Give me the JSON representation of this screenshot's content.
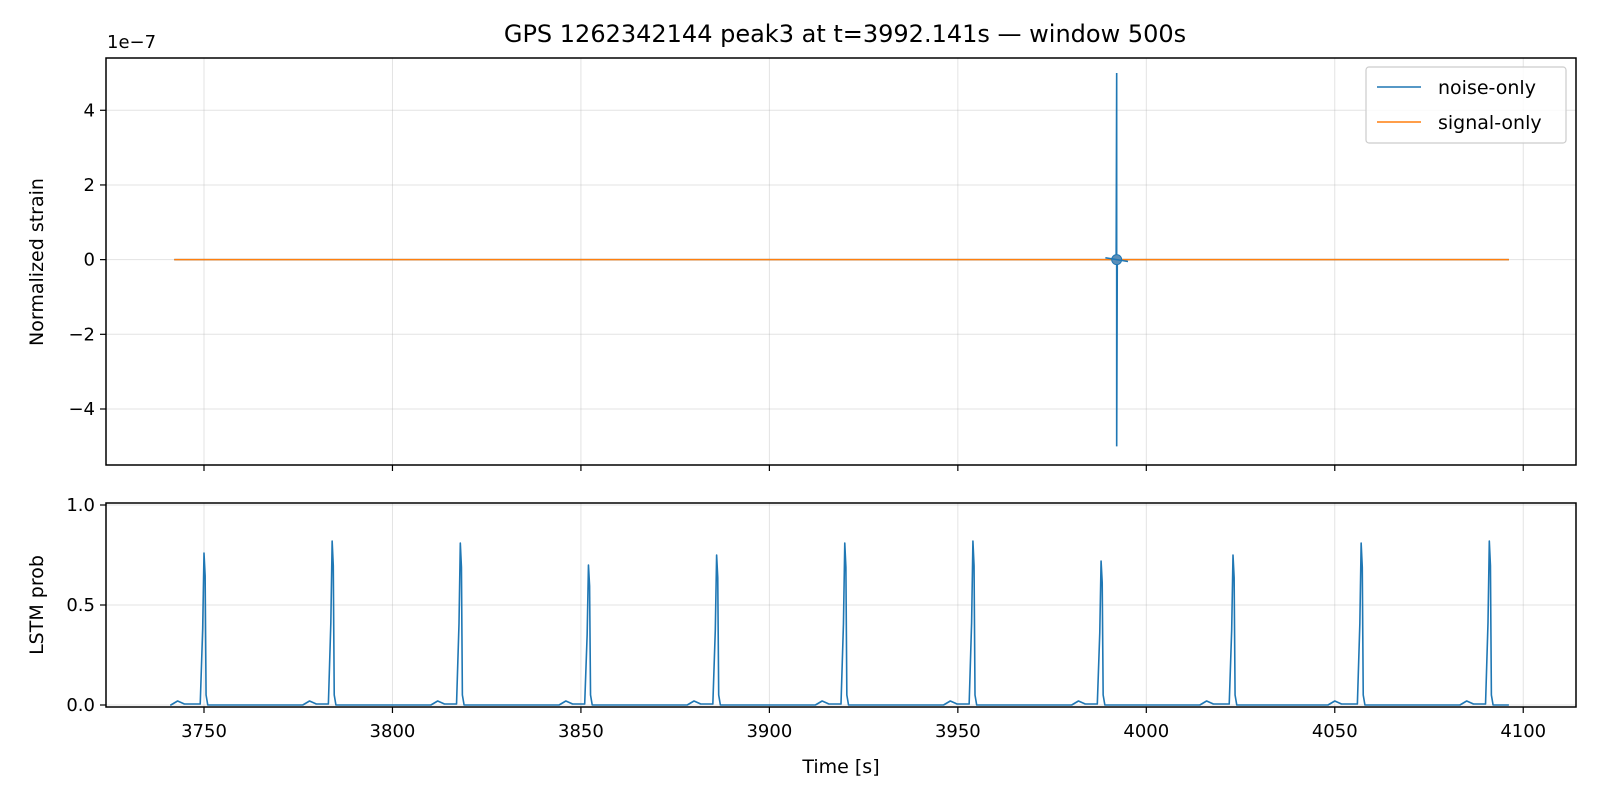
{
  "chart_data": [
    {
      "type": "line",
      "title": "GPS 1262342144 peak3 at t=3992.141s — window 500s",
      "xlabel": "",
      "ylabel": "Normalized strain",
      "offset_label": "1e−7",
      "xlim": [
        3724,
        4114
      ],
      "ylim": [
        -5.5,
        5.4
      ],
      "y_scale_factor": "1e-7",
      "xticks": [
        3750,
        3800,
        3850,
        3900,
        3950,
        4000,
        4050,
        4100
      ],
      "yticks": [
        -4,
        -2,
        0,
        2,
        4
      ],
      "ytick_labels": [
        "−4",
        "−2",
        "0",
        "2",
        "4"
      ],
      "grid": true,
      "legend": {
        "position": "upper right",
        "entries": [
          "noise-only",
          "signal-only"
        ]
      },
      "series": [
        {
          "name": "noise-only",
          "color": "#1f77b4",
          "points": [
            [
              3742.1,
              0.0
            ],
            [
              3992.0,
              0.0
            ],
            [
              3992.14,
              5.0
            ],
            [
              3992.14,
              -5.0
            ],
            [
              3992.3,
              0.0
            ],
            [
              4096.2,
              0.0
            ]
          ]
        },
        {
          "name": "signal-only",
          "color": "#ff7f0e",
          "points": [
            [
              3742.1,
              0.0
            ],
            [
              4096.2,
              0.0
            ]
          ]
        }
      ]
    },
    {
      "type": "line",
      "title": "",
      "xlabel": "Time [s]",
      "ylabel": "LSTM prob",
      "xlim": [
        3724,
        4114
      ],
      "ylim": [
        -0.01,
        1.01
      ],
      "xticks": [
        3750,
        3800,
        3850,
        3900,
        3950,
        4000,
        4050,
        4100
      ],
      "xtick_labels": [
        "3750",
        "3800",
        "3850",
        "3900",
        "3950",
        "4000",
        "4050",
        "4100"
      ],
      "yticks": [
        0.0,
        0.5,
        1.0
      ],
      "ytick_labels": [
        "0.0",
        "0.5",
        "1.0"
      ],
      "grid": true,
      "series": [
        {
          "color": "#1f77b4",
          "peaks": [
            {
              "t": 3750.0,
              "value": 0.76
            },
            {
              "t": 3784.0,
              "value": 0.82
            },
            {
              "t": 3818.0,
              "value": 0.81
            },
            {
              "t": 3852.0,
              "value": 0.7
            },
            {
              "t": 3886.0,
              "value": 0.75
            },
            {
              "t": 3920.0,
              "value": 0.81
            },
            {
              "t": 3954.0,
              "value": 0.82
            },
            {
              "t": 3988.0,
              "value": 0.72
            },
            {
              "t": 4023.0,
              "value": 0.75
            },
            {
              "t": 4057.0,
              "value": 0.81
            },
            {
              "t": 4091.0,
              "value": 0.82
            }
          ],
          "bumps": [
            {
              "t": 3743.0,
              "value": 0.02
            },
            {
              "t": 3778.0,
              "value": 0.02
            },
            {
              "t": 3812.0,
              "value": 0.02
            },
            {
              "t": 3846.0,
              "value": 0.02
            },
            {
              "t": 3880.0,
              "value": 0.02
            },
            {
              "t": 3914.0,
              "value": 0.02
            },
            {
              "t": 3948.0,
              "value": 0.02
            },
            {
              "t": 3982.0,
              "value": 0.02
            },
            {
              "t": 4016.0,
              "value": 0.02
            },
            {
              "t": 4050.0,
              "value": 0.02
            },
            {
              "t": 4085.0,
              "value": 0.02
            }
          ],
          "t_start": 3742.1,
          "t_end": 4096.2,
          "baseline": 0.0
        }
      ]
    }
  ]
}
